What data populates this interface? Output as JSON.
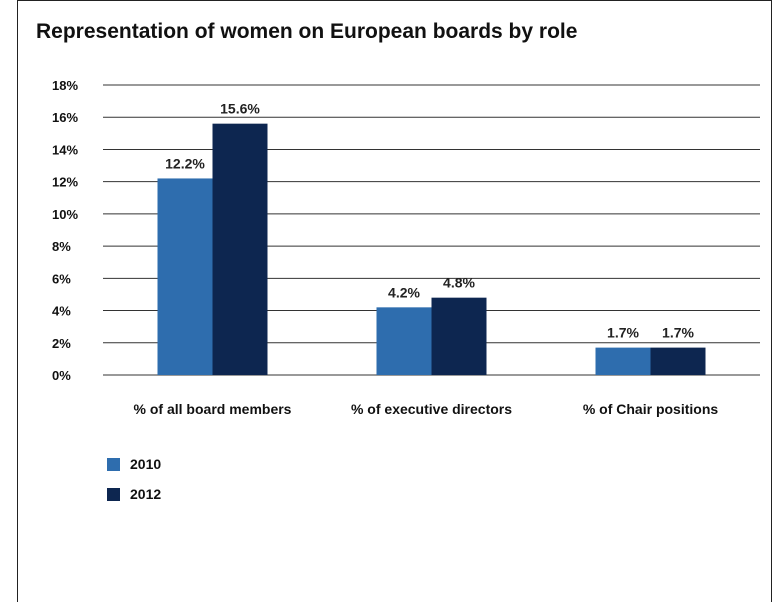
{
  "chart_data": {
    "type": "bar",
    "title": "Representation of women on European boards by role",
    "categories": [
      "% of all board members",
      "% of executive directors",
      "% of Chair positions"
    ],
    "series": [
      {
        "name": "2010",
        "color": "#2E6DAE",
        "values": [
          12.2,
          4.2,
          1.7
        ],
        "labels": [
          "12.2%",
          "4.2%",
          "1.7%"
        ]
      },
      {
        "name": "2012",
        "color": "#0D2650",
        "values": [
          15.6,
          4.8,
          1.7
        ],
        "labels": [
          "15.6%",
          "4.8%",
          "1.7%"
        ]
      }
    ],
    "yticks": [
      "0%",
      "2%",
      "4%",
      "6%",
      "8%",
      "10%",
      "12%",
      "14%",
      "16%",
      "18%"
    ],
    "ylim": [
      0,
      18
    ],
    "grid": true,
    "legend": "bottom-left"
  }
}
